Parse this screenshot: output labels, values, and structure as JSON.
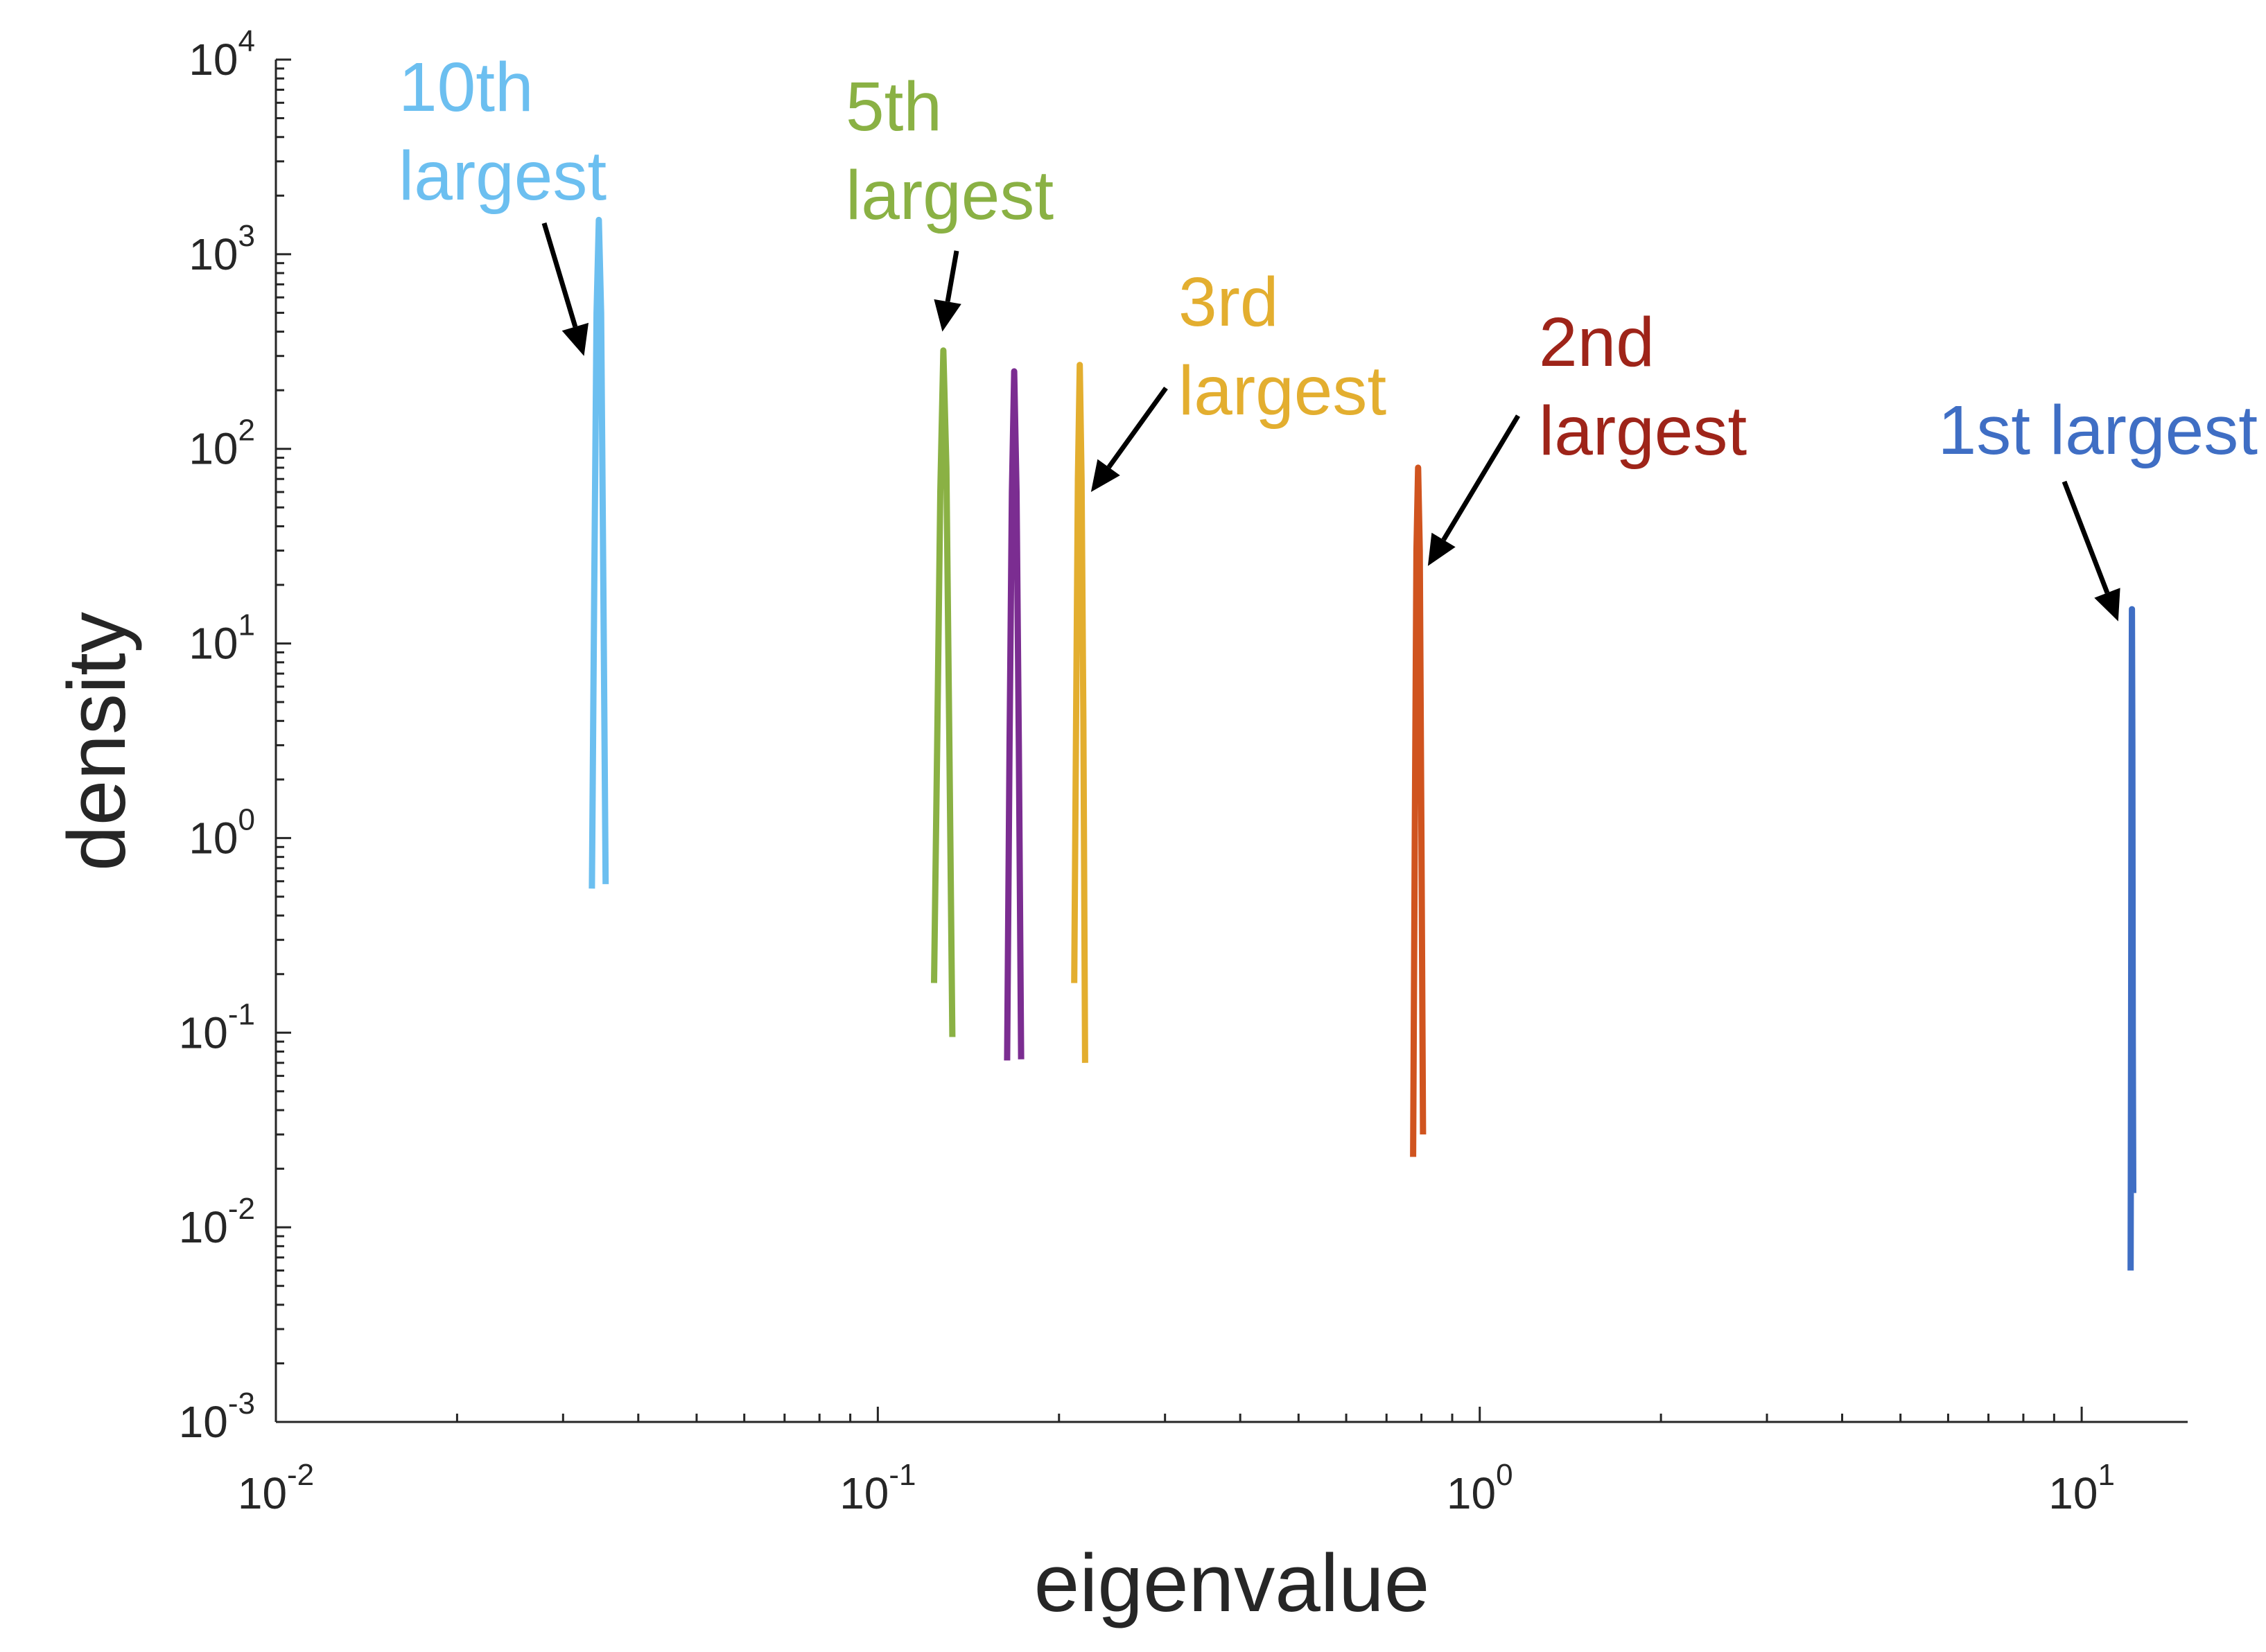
{
  "chart_data": {
    "type": "line",
    "title": "",
    "xlabel": "eigenvalue",
    "ylabel": "density",
    "xscale": "log",
    "yscale": "log",
    "xlim": [
      0.01,
      15
    ],
    "ylim": [
      0.001,
      10000
    ],
    "grid": false,
    "legend": "none",
    "x_ticks": [
      {
        "value": 0.01,
        "base": "10",
        "exp": "-2"
      },
      {
        "value": 0.1,
        "base": "10",
        "exp": "-1"
      },
      {
        "value": 1,
        "base": "10",
        "exp": "0"
      },
      {
        "value": 10,
        "base": "10",
        "exp": "1"
      }
    ],
    "y_ticks": [
      {
        "value": 0.001,
        "base": "10",
        "exp": "-3"
      },
      {
        "value": 0.01,
        "base": "10",
        "exp": "-2"
      },
      {
        "value": 0.1,
        "base": "10",
        "exp": "-1"
      },
      {
        "value": 1,
        "base": "10",
        "exp": "0"
      },
      {
        "value": 10,
        "base": "10",
        "exp": "1"
      },
      {
        "value": 100,
        "base": "10",
        "exp": "2"
      },
      {
        "value": 1000,
        "base": "10",
        "exp": "3"
      },
      {
        "value": 10000,
        "base": "10",
        "exp": "4"
      }
    ],
    "series": [
      {
        "color": "#6cbff0",
        "x": [
          0.0335,
          0.0338,
          0.0341,
          0.0344,
          0.0347,
          0.035,
          0.0353
        ],
        "y": [
          0.55,
          20,
          500,
          1500,
          500,
          20,
          0.58
        ]
      },
      {
        "color": "#8ab144",
        "x": [
          0.124,
          0.1255,
          0.127,
          0.1285,
          0.13,
          0.1315,
          0.133
        ],
        "y": [
          0.18,
          3,
          60,
          320,
          80,
          3,
          0.095
        ]
      },
      {
        "color": "#7b2d91",
        "x": [
          0.164,
          0.1655,
          0.167,
          0.1685,
          0.17,
          0.1715,
          0.173
        ],
        "y": [
          0.072,
          3,
          60,
          250,
          60,
          3,
          0.073
        ]
      },
      {
        "color": "#e3ae2f",
        "x": [
          0.212,
          0.2135,
          0.215,
          0.2165,
          0.218,
          0.2195,
          0.221
        ],
        "y": [
          0.18,
          4,
          70,
          270,
          70,
          4,
          0.07
        ]
      },
      {
        "color": "#d0541f",
        "x": [
          0.775,
          0.78,
          0.785,
          0.79,
          0.795,
          0.8,
          0.805
        ],
        "y": [
          0.023,
          1,
          30,
          80,
          30,
          1,
          0.03
        ]
      },
      {
        "color": "#3f6ec4",
        "x": [
          12.06,
          12.08,
          12.1,
          12.12,
          12.14,
          12.16,
          12.18
        ],
        "y": [
          0.006,
          0.1,
          3,
          15,
          3,
          0.1,
          0.015
        ]
      }
    ],
    "annotations": [
      {
        "lines": [
          "10th",
          "largest"
        ],
        "color": "#6cbff0",
        "points_to": {
          "x": 0.0325,
          "y": 300
        }
      },
      {
        "lines": [
          "5th",
          "largest"
        ],
        "color": "#8ab144",
        "points_to": {
          "x": 0.128,
          "y": 400
        }
      },
      {
        "lines": [
          "3rd",
          "largest"
        ],
        "color": "#e3ae2f",
        "points_to": {
          "x": 0.226,
          "y": 60
        }
      },
      {
        "lines": [
          "2nd",
          "largest"
        ],
        "color": "#9e2419",
        "points_to": {
          "x": 0.82,
          "y": 25
        }
      },
      {
        "lines": [
          "1st largest"
        ],
        "color": "#3f6ec4",
        "points_to": {
          "x": 11.5,
          "y": 13
        }
      }
    ]
  }
}
